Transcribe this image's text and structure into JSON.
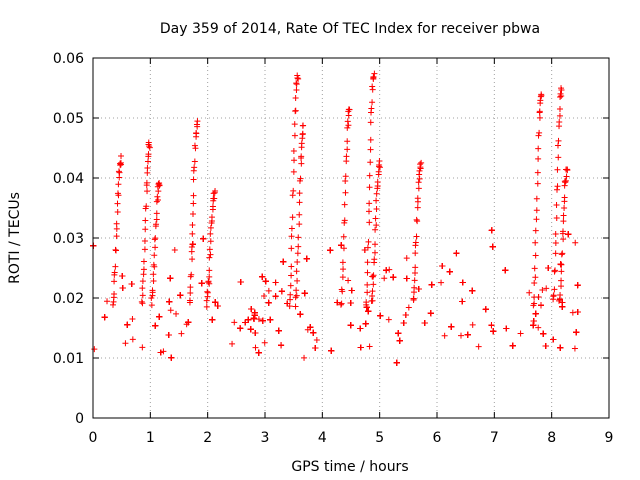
{
  "chart_data": {
    "type": "scatter",
    "title": "Day 359 of 2014, Rate Of TEC Index for receiver pbwa",
    "xlabel": "GPS time / hours",
    "ylabel": "ROTI / TECUs",
    "xlim": [
      0,
      9
    ],
    "ylim": [
      0,
      0.06
    ],
    "xticks": [
      "0",
      "1",
      "2",
      "3",
      "4",
      "5",
      "6",
      "7",
      "8",
      "9"
    ],
    "yticks": [
      "0",
      "0.01",
      "0.02",
      "0.03",
      "0.04",
      "0.05",
      "0.06"
    ],
    "grid": true,
    "marker": "+",
    "color": "#ff0000",
    "series": [
      {
        "name": "ROTI",
        "description": "Dense cloud of ROTI samples for all satellites from 0 to ~8.5 h; bulk between 0.005 and 0.025 TECU/s",
        "x_range": [
          0.0,
          8.5
        ],
        "typical_range": [
          0.005,
          0.025
        ],
        "peaks": [
          {
            "x": 0.47,
            "y": 0.044
          },
          {
            "x": 0.97,
            "y": 0.0465
          },
          {
            "x": 1.14,
            "y": 0.04
          },
          {
            "x": 1.8,
            "y": 0.0495
          },
          {
            "x": 2.1,
            "y": 0.038
          },
          {
            "x": 3.55,
            "y": 0.058
          },
          {
            "x": 3.65,
            "y": 0.049
          },
          {
            "x": 4.45,
            "y": 0.052
          },
          {
            "x": 4.88,
            "y": 0.058
          },
          {
            "x": 4.98,
            "y": 0.043
          },
          {
            "x": 5.7,
            "y": 0.043
          },
          {
            "x": 7.8,
            "y": 0.055
          },
          {
            "x": 8.15,
            "y": 0.0555
          },
          {
            "x": 8.25,
            "y": 0.042
          }
        ]
      }
    ]
  }
}
